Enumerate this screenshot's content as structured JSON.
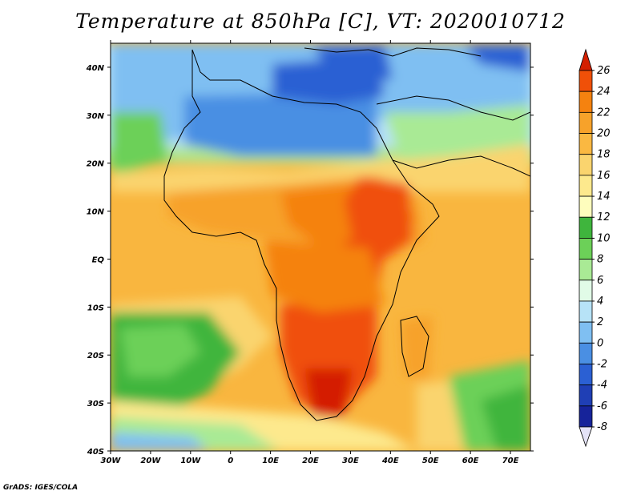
{
  "title": "Temperature at 850hPa [C], VT: 2020010712",
  "credit": "GrADS: IGES/COLA",
  "map": {
    "lon_range": [
      -30,
      75
    ],
    "lat_range": [
      -40,
      45
    ],
    "lon_ticks": [
      {
        "lon": -30,
        "label": "30W"
      },
      {
        "lon": -20,
        "label": "20W"
      },
      {
        "lon": -10,
        "label": "10W"
      },
      {
        "lon": 0,
        "label": "0"
      },
      {
        "lon": 10,
        "label": "10E"
      },
      {
        "lon": 20,
        "label": "20E"
      },
      {
        "lon": 30,
        "label": "30E"
      },
      {
        "lon": 40,
        "label": "40E"
      },
      {
        "lon": 50,
        "label": "50E"
      },
      {
        "lon": 60,
        "label": "60E"
      },
      {
        "lon": 70,
        "label": "70E"
      }
    ],
    "lat_ticks": [
      {
        "lat": 40,
        "label": "40N"
      },
      {
        "lat": 30,
        "label": "30N"
      },
      {
        "lat": 20,
        "label": "20N"
      },
      {
        "lat": 10,
        "label": "10N"
      },
      {
        "lat": 0,
        "label": "EQ"
      },
      {
        "lat": -10,
        "label": "10S"
      },
      {
        "lat": -20,
        "label": "20S"
      },
      {
        "lat": -30,
        "label": "30S"
      },
      {
        "lat": -40,
        "label": "40S"
      }
    ]
  },
  "colorbar": {
    "levels": [
      "26",
      "24",
      "22",
      "20",
      "18",
      "16",
      "14",
      "12",
      "10",
      "8",
      "6",
      "4",
      "2",
      "0",
      "-2",
      "-4",
      "-6",
      "-8"
    ],
    "colors": [
      "#d41f00",
      "#f05008",
      "#f5820f",
      "#f7a22a",
      "#fab841",
      "#fad46e",
      "#fde98d",
      "#fefdbd",
      "#3fb53d",
      "#6cd058",
      "#a9ea95",
      "#e1fbe7",
      "#b7e3f7",
      "#7fbff2",
      "#4a8fe3",
      "#2b60d3",
      "#1f3fb5",
      "#16239a",
      "#0b0f6b"
    ],
    "over_color": "#d41f00",
    "under_color": "#e4e3f7"
  }
}
